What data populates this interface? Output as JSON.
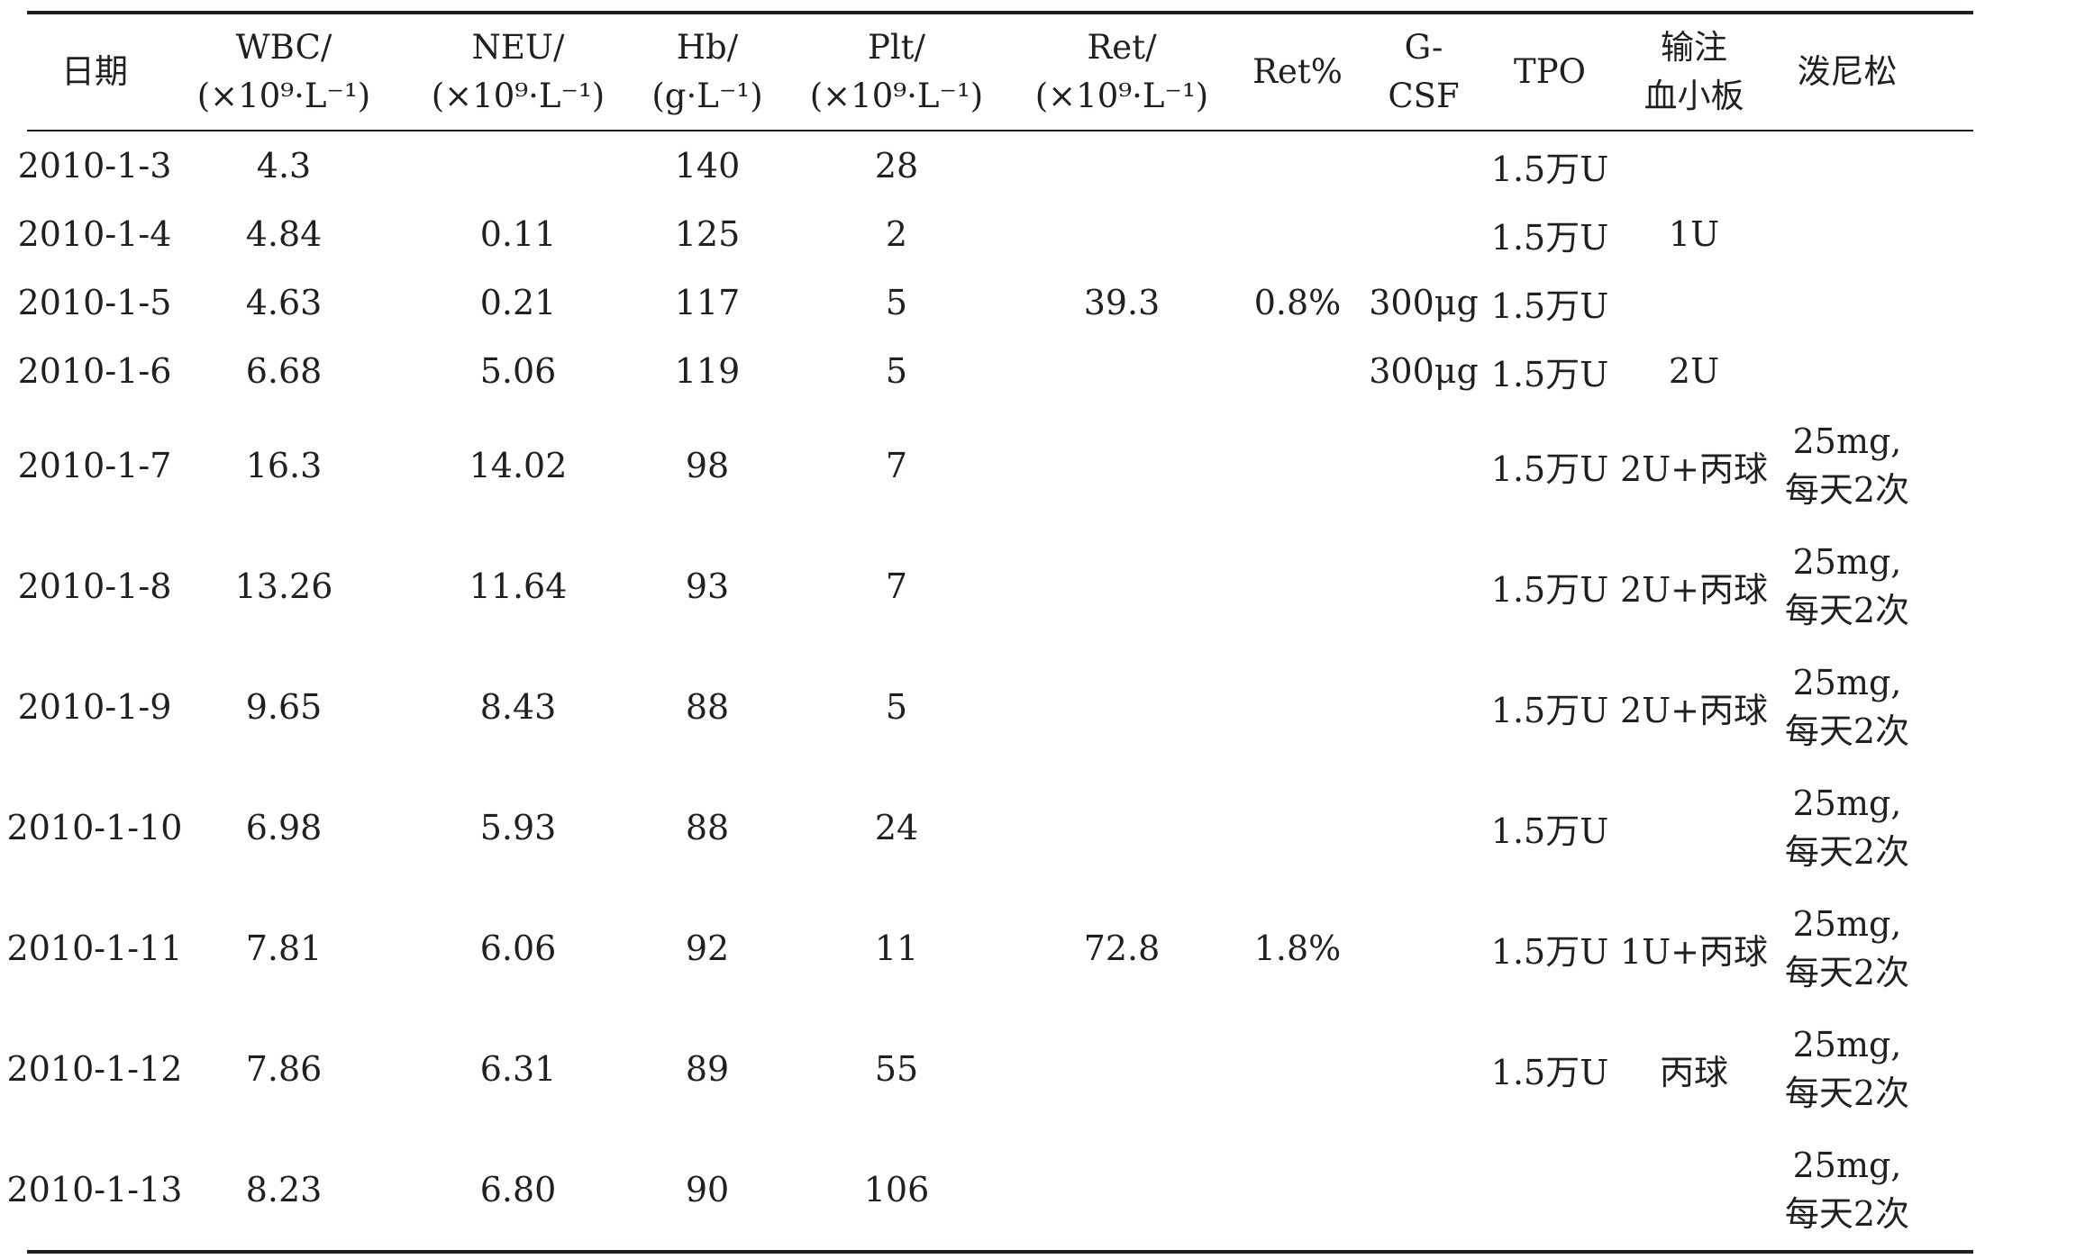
{
  "headers": {
    "date": "日期",
    "wbc": [
      "WBC/",
      "(×10⁹·L⁻¹)"
    ],
    "neu": [
      "NEU/",
      "(×10⁹·L⁻¹)"
    ],
    "hb": [
      "Hb/",
      "(g·L⁻¹)"
    ],
    "plt": [
      "Plt/",
      "(×10⁹·L⁻¹)"
    ],
    "ret": [
      "Ret/",
      "(×10⁹·L⁻¹)"
    ],
    "retpct": "Ret%",
    "gcsf": [
      "G-",
      "CSF"
    ],
    "tpo": "TPO",
    "transfusion": [
      "输注",
      "血小板"
    ],
    "prednisone": "泼尼松"
  },
  "rows": [
    {
      "date": "2010-1-3",
      "wbc": "4.3",
      "neu": "",
      "hb": "140",
      "plt": "28",
      "ret": "",
      "retpct": "",
      "gcsf": "",
      "tpo": "1.5万U",
      "transfusion": "",
      "prednisone": [
        "",
        ""
      ]
    },
    {
      "date": "2010-1-4",
      "wbc": "4.84",
      "neu": "0.11",
      "hb": "125",
      "plt": "2",
      "ret": "",
      "retpct": "",
      "gcsf": "",
      "tpo": "1.5万U",
      "transfusion": "1U",
      "prednisone": [
        "",
        ""
      ]
    },
    {
      "date": "2010-1-5",
      "wbc": "4.63",
      "neu": "0.21",
      "hb": "117",
      "plt": "5",
      "ret": "39.3",
      "retpct": "0.8%",
      "gcsf": "300μg",
      "tpo": "1.5万U",
      "transfusion": "",
      "prednisone": [
        "",
        ""
      ]
    },
    {
      "date": "2010-1-6",
      "wbc": "6.68",
      "neu": "5.06",
      "hb": "119",
      "plt": "5",
      "ret": "",
      "retpct": "",
      "gcsf": "300μg",
      "tpo": "1.5万U",
      "transfusion": "2U",
      "prednisone": [
        "",
        ""
      ]
    },
    {
      "date": "2010-1-7",
      "wbc": "16.3",
      "neu": "14.02",
      "hb": "98",
      "plt": "7",
      "ret": "",
      "retpct": "",
      "gcsf": "",
      "tpo": "1.5万U",
      "transfusion": "2U+丙球",
      "prednisone": [
        "25mg,",
        "每天2次"
      ]
    },
    {
      "date": "2010-1-8",
      "wbc": "13.26",
      "neu": "11.64",
      "hb": "93",
      "plt": "7",
      "ret": "",
      "retpct": "",
      "gcsf": "",
      "tpo": "1.5万U",
      "transfusion": "2U+丙球",
      "prednisone": [
        "25mg,",
        "每天2次"
      ]
    },
    {
      "date": "2010-1-9",
      "wbc": "9.65",
      "neu": "8.43",
      "hb": "88",
      "plt": "5",
      "ret": "",
      "retpct": "",
      "gcsf": "",
      "tpo": "1.5万U",
      "transfusion": "2U+丙球",
      "prednisone": [
        "25mg,",
        "每天2次"
      ]
    },
    {
      "date": "2010-1-10",
      "wbc": "6.98",
      "neu": "5.93",
      "hb": "88",
      "plt": "24",
      "ret": "",
      "retpct": "",
      "gcsf": "",
      "tpo": "1.5万U",
      "transfusion": "",
      "prednisone": [
        "25mg,",
        "每天2次"
      ]
    },
    {
      "date": "2010-1-11",
      "wbc": "7.81",
      "neu": "6.06",
      "hb": "92",
      "plt": "11",
      "ret": "72.8",
      "retpct": "1.8%",
      "gcsf": "",
      "tpo": "1.5万U",
      "transfusion": "1U+丙球",
      "prednisone": [
        "25mg,",
        "每天2次"
      ]
    },
    {
      "date": "2010-1-12",
      "wbc": "7.86",
      "neu": "6.31",
      "hb": "89",
      "plt": "55",
      "ret": "",
      "retpct": "",
      "gcsf": "",
      "tpo": "1.5万U",
      "transfusion": "丙球",
      "prednisone": [
        "25mg,",
        "每天2次"
      ]
    },
    {
      "date": "2010-1-13",
      "wbc": "8.23",
      "neu": "6.80",
      "hb": "90",
      "plt": "106",
      "ret": "",
      "retpct": "",
      "gcsf": "",
      "tpo": "",
      "transfusion": "",
      "prednisone": [
        "25mg,",
        "每天2次"
      ]
    }
  ]
}
